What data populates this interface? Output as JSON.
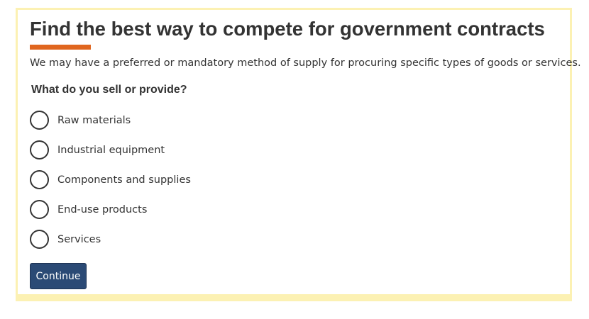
{
  "page": {
    "title": "Find the best way to compete for government contracts",
    "intro": "We may have a preferred or mandatory method of supply for procuring specific types of goods or services."
  },
  "form": {
    "question": "What do you sell or provide?",
    "options": [
      {
        "label": "Raw materials",
        "selected": false
      },
      {
        "label": "Industrial equipment",
        "selected": false
      },
      {
        "label": "Components and supplies",
        "selected": false
      },
      {
        "label": "End-use products",
        "selected": false
      },
      {
        "label": "Services",
        "selected": false
      }
    ],
    "continue_label": "Continue"
  },
  "colors": {
    "panel_border": "#fcf1b3",
    "title_accent": "#e0661f",
    "button_background": "#2b4a75",
    "text": "#333333"
  }
}
